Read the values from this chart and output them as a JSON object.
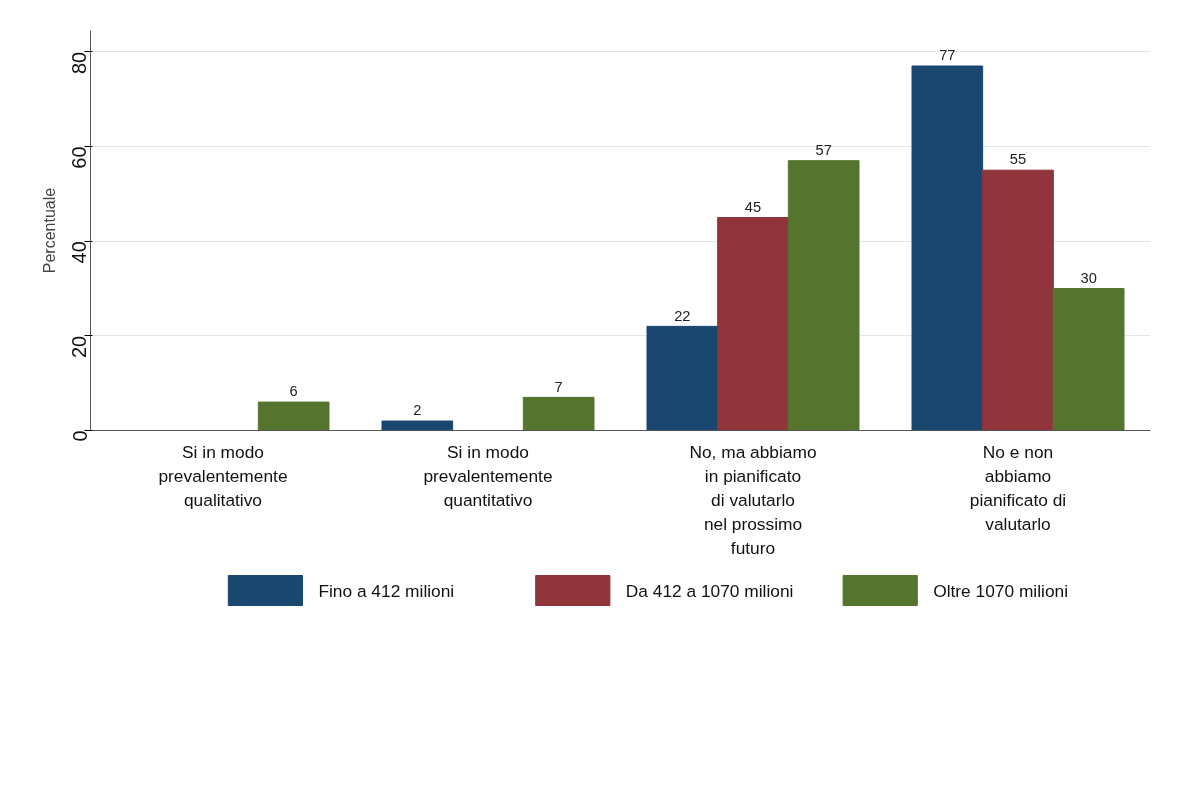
{
  "chart_data": {
    "type": "bar",
    "ylabel": "Percentuale",
    "categories": [
      "Si in modo\nprevalentemente\nqualitativo",
      "Si in modo\nprevalentemente\nquantitativo",
      "No, ma abbiamo\nin pianificato\ndi valutarlo\nnel prossimo\nfuturo",
      "No e non\nabbiamo\npianificato di\nvalutarlo"
    ],
    "series": [
      {
        "name": "Fino a 412 milioni",
        "color": "#1a476f",
        "values": [
          null,
          2,
          22,
          77
        ]
      },
      {
        "name": "Da 412 a 1070 milioni",
        "color": "#90353b",
        "values": [
          null,
          null,
          45,
          55
        ]
      },
      {
        "name": "Oltre 1070 milioni",
        "color": "#55752f",
        "values": [
          6,
          7,
          57,
          30
        ]
      }
    ],
    "ylim": [
      0,
      84.5
    ],
    "yticks": [
      0,
      20,
      40,
      60,
      80
    ],
    "grid": "y",
    "legend": "bottom",
    "data_labels": true
  }
}
